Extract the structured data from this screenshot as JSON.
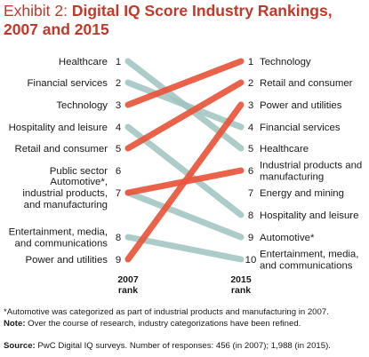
{
  "title": {
    "exhibit": "Exhibit 2:",
    "main": "Digital IQ Score Industry Rankings, 2007 and 2015"
  },
  "chart_data": {
    "type": "slope",
    "columns": {
      "left": "2007\nrank",
      "right": "2015\nrank"
    },
    "left_labels": [
      {
        "rank": "1",
        "text": "Healthcare"
      },
      {
        "rank": "2",
        "text": "Financial services"
      },
      {
        "rank": "3",
        "text": "Technology"
      },
      {
        "rank": "4",
        "text": "Hospitality and leisure"
      },
      {
        "rank": "5",
        "text": "Retail and consumer"
      },
      {
        "rank": "6",
        "text": "Public sector"
      },
      {
        "rank": "7",
        "text": "Automotive*,\nindustrial products,\nand manufacturing"
      },
      {
        "rank": "8",
        "text": "Entertainment, media,\nand communications"
      },
      {
        "rank": "9",
        "text": "Power and utilities"
      }
    ],
    "right_labels": [
      {
        "rank": "1",
        "text": "Technology"
      },
      {
        "rank": "2",
        "text": "Retail and consumer"
      },
      {
        "rank": "3",
        "text": "Power and utilities"
      },
      {
        "rank": "4",
        "text": "Financial services"
      },
      {
        "rank": "5",
        "text": "Healthcare"
      },
      {
        "rank": "6",
        "text": "Industrial products and\nmanufacturing"
      },
      {
        "rank": "7",
        "text": "Energy and mining"
      },
      {
        "rank": "8",
        "text": "Hospitality and leisure"
      },
      {
        "rank": "9",
        "text": "Automotive*"
      },
      {
        "rank": "10",
        "text": "Entertainment, media,\nand communications"
      }
    ],
    "lines": [
      {
        "from": 1,
        "to": 5,
        "direction": "down"
      },
      {
        "from": 2,
        "to": 4,
        "direction": "down"
      },
      {
        "from": 3,
        "to": 1,
        "direction": "up"
      },
      {
        "from": 4,
        "to": 8,
        "direction": "down"
      },
      {
        "from": 5,
        "to": 2,
        "direction": "up"
      },
      {
        "from": 7,
        "to": 6,
        "direction": "up"
      },
      {
        "from": 7,
        "to": 9,
        "direction": "down"
      },
      {
        "from": 8,
        "to": 10,
        "direction": "down"
      },
      {
        "from": 9,
        "to": 3,
        "direction": "up"
      }
    ],
    "colors": {
      "up": "#e8553b",
      "down": "#9fc3c0"
    }
  },
  "notes": {
    "footnote": "*Automotive was categorized as part of industrial products and manufacturing in 2007.",
    "note_label": "Note:",
    "note_text": " Over the course of research, industry categorizations have been refined.",
    "source_label": "Source:",
    "source_text": " PwC Digital IQ surveys. Number of responses: 456 (in 2007); 1,988 (in 2015)."
  }
}
